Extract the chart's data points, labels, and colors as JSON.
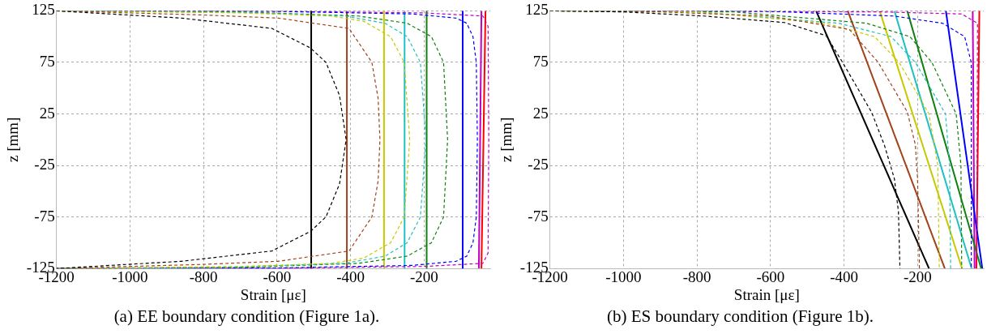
{
  "chart_data": [
    {
      "type": "line",
      "title": "(a) EE boundary condition (Figure 1a).",
      "xlabel": "Strain [με]",
      "ylabel": "z [mm]",
      "xlim": [
        -1200,
        -20
      ],
      "ylim": [
        -125,
        125
      ],
      "xticks": [
        -1200,
        -1000,
        -800,
        -600,
        -400,
        -200
      ],
      "yticks": [
        -125,
        -75,
        -25,
        25,
        75,
        125
      ],
      "grid": true,
      "series": [
        {
          "color": "#000000",
          "line_style": "dashed",
          "x": [
            -1200,
            -860,
            -614,
            -509,
            -467,
            -430,
            -412,
            -430,
            -467,
            -509,
            -614,
            -860,
            -1200
          ],
          "values": [
            125,
            118,
            108,
            89,
            75,
            43,
            0,
            -43,
            -75,
            -89,
            -108,
            -118,
            -125
          ]
        },
        {
          "color": "#a0421a",
          "line_style": "dashed",
          "x": [
            -1200,
            -800,
            -597,
            -404,
            -342,
            -325,
            -320,
            -325,
            -342,
            -404,
            -597,
            -800,
            -1200
          ],
          "values": [
            125,
            121,
            118,
            108,
            75,
            40,
            0,
            -40,
            -75,
            -108,
            -118,
            -121,
            -125
          ]
        },
        {
          "color": "#c8c800",
          "line_style": "dashed",
          "x": [
            -1200,
            -700,
            -454,
            -365,
            -291,
            -254,
            -239,
            -254,
            -291,
            -365,
            -454,
            -700,
            -1200
          ],
          "values": [
            125,
            123,
            120,
            115,
            100,
            75,
            0,
            -75,
            -100,
            -115,
            -120,
            -123,
            -125
          ]
        },
        {
          "color": "#20c0c0",
          "line_style": "dashed",
          "x": [
            -1200,
            -700,
            -416,
            -306,
            -246,
            -210,
            -195,
            -210,
            -246,
            -306,
            -416,
            -700,
            -1200
          ],
          "values": [
            125,
            123.5,
            120,
            113,
            100,
            75,
            0,
            -75,
            -100,
            -113,
            -120,
            -123.5,
            -125
          ]
        },
        {
          "color": "#108010",
          "line_style": "dashed",
          "x": [
            -1200,
            -700,
            -379,
            -246,
            -180,
            -147,
            -136,
            -147,
            -180,
            -246,
            -379,
            -700,
            -1200
          ],
          "values": [
            125,
            124,
            120,
            113,
            100,
            75,
            0,
            -75,
            -100,
            -113,
            -120,
            -124,
            -125
          ]
        },
        {
          "color": "#0000ff",
          "line_style": "dashed",
          "x": [
            -1200,
            -600,
            -232,
            -113,
            -84,
            -67,
            -58,
            -55,
            -58,
            -67,
            -84,
            -113,
            -232,
            -600,
            -1200
          ],
          "values": [
            125,
            124.5,
            122,
            118,
            113,
            100,
            75,
            0,
            -75,
            -100,
            -113,
            -118,
            -122,
            -124.5,
            -125
          ]
        },
        {
          "color": "#c000c0",
          "line_style": "dashed",
          "x": [
            -1200,
            -600,
            -200,
            -40,
            -26,
            -24,
            -26,
            -40,
            -200,
            -600,
            -1200
          ],
          "values": [
            125,
            124.7,
            123,
            120,
            110,
            0,
            -110,
            -120,
            -123,
            -124.7,
            -125
          ]
        },
        {
          "color": "#000000",
          "line_style": "solid",
          "x": [
            -507,
            -507
          ],
          "values": [
            125,
            -125
          ]
        },
        {
          "color": "#a0421a",
          "line_style": "solid",
          "x": [
            -410,
            -410
          ],
          "values": [
            125,
            -125
          ]
        },
        {
          "color": "#c8c800",
          "line_style": "solid",
          "x": [
            -309,
            -309
          ],
          "values": [
            125,
            -125
          ]
        },
        {
          "color": "#20c0c0",
          "line_style": "solid",
          "x": [
            -253,
            -253
          ],
          "values": [
            125,
            -125
          ]
        },
        {
          "color": "#108010",
          "line_style": "solid",
          "x": [
            -193,
            -193
          ],
          "values": [
            125,
            -125
          ]
        },
        {
          "color": "#0000ff",
          "line_style": "solid",
          "x": [
            -95,
            -95
          ],
          "values": [
            125,
            -125
          ]
        },
        {
          "color": "#c000c0",
          "line_style": "solid",
          "x": [
            -44,
            -51
          ],
          "values": [
            125,
            -125
          ]
        },
        {
          "color": "#ff0000",
          "line_style": "solid",
          "x": [
            -33,
            -44
          ],
          "values": [
            125,
            -125
          ]
        }
      ]
    },
    {
      "type": "line",
      "title": "(b) ES boundary condition (Figure 1b).",
      "xlabel": "Strain [με]",
      "ylabel": "z [mm]",
      "xlim": [
        -1200,
        -20
      ],
      "ylim": [
        -125,
        125
      ],
      "xticks": [
        -1200,
        -1000,
        -800,
        -600,
        -400,
        -200
      ],
      "yticks": [
        -125,
        -75,
        -25,
        25,
        75,
        125
      ],
      "grid": true,
      "series": [
        {
          "color": "#000000",
          "line_style": "dashed",
          "x": [
            -1200,
            -1000,
            -781,
            -562,
            -448,
            -404,
            -325,
            -290,
            -263,
            -252,
            -248
          ],
          "values": [
            125,
            124,
            120,
            113.7,
            100.8,
            75,
            26.6,
            -5.6,
            -38,
            -70,
            -125
          ]
        },
        {
          "color": "#a0421a",
          "line_style": "dashed",
          "x": [
            -1200,
            -900,
            -605,
            -518,
            -386,
            -307,
            -228,
            -206,
            -200,
            -195
          ],
          "values": [
            125,
            124,
            120,
            115,
            107,
            75,
            27,
            -5,
            -38,
            -125
          ]
        },
        {
          "color": "#c8c800",
          "line_style": "dashed",
          "x": [
            -1200,
            -800,
            -450,
            -317,
            -250,
            -169,
            -145,
            -141
          ],
          "values": [
            125,
            124,
            113,
            100,
            75,
            25,
            -25,
            -125
          ]
        },
        {
          "color": "#20c0c0",
          "line_style": "dashed",
          "x": [
            -1200,
            -800,
            -414,
            -272,
            -206,
            -124,
            -113,
            -110
          ],
          "values": [
            125,
            124,
            113,
            100,
            75,
            25,
            -25,
            -125
          ]
        },
        {
          "color": "#108010",
          "line_style": "dashed",
          "x": [
            -1200,
            -700,
            -339,
            -221,
            -161,
            -95,
            -82,
            -80
          ],
          "values": [
            125,
            124,
            113,
            100,
            75,
            25,
            -25,
            -125
          ]
        },
        {
          "color": "#0000ff",
          "line_style": "dashed",
          "x": [
            -1200,
            -600,
            -265,
            -132,
            -72,
            -54,
            -54
          ],
          "values": [
            125,
            124.5,
            120,
            113,
            100,
            75,
            -125
          ]
        },
        {
          "color": "#c000c0",
          "line_style": "dashed",
          "x": [
            -1200,
            -300,
            -80,
            -37,
            -39
          ],
          "values": [
            125,
            124,
            122,
            113,
            -125
          ]
        },
        {
          "color": "#000000",
          "line_style": "solid",
          "x": [
            -476,
            -169
          ],
          "values": [
            125,
            -125
          ]
        },
        {
          "color": "#a0421a",
          "line_style": "solid",
          "x": [
            -390,
            -126
          ],
          "values": [
            125,
            -125
          ]
        },
        {
          "color": "#c8c800",
          "line_style": "solid",
          "x": [
            -303,
            -79
          ],
          "values": [
            125,
            -125
          ]
        },
        {
          "color": "#20c0c0",
          "line_style": "solid",
          "x": [
            -263,
            -53
          ],
          "values": [
            125,
            -125
          ]
        },
        {
          "color": "#108010",
          "line_style": "solid",
          "x": [
            -228,
            -27
          ],
          "values": [
            125,
            -125
          ]
        },
        {
          "color": "#0000ff",
          "line_style": "solid",
          "x": [
            -123,
            -24
          ],
          "values": [
            125,
            -125
          ]
        },
        {
          "color": "#c000c0",
          "line_style": "solid",
          "x": [
            -50,
            -45
          ],
          "values": [
            125,
            -125
          ]
        },
        {
          "color": "#ff0000",
          "line_style": "solid",
          "x": [
            -32,
            -40
          ],
          "values": [
            125,
            -125
          ]
        }
      ]
    }
  ]
}
